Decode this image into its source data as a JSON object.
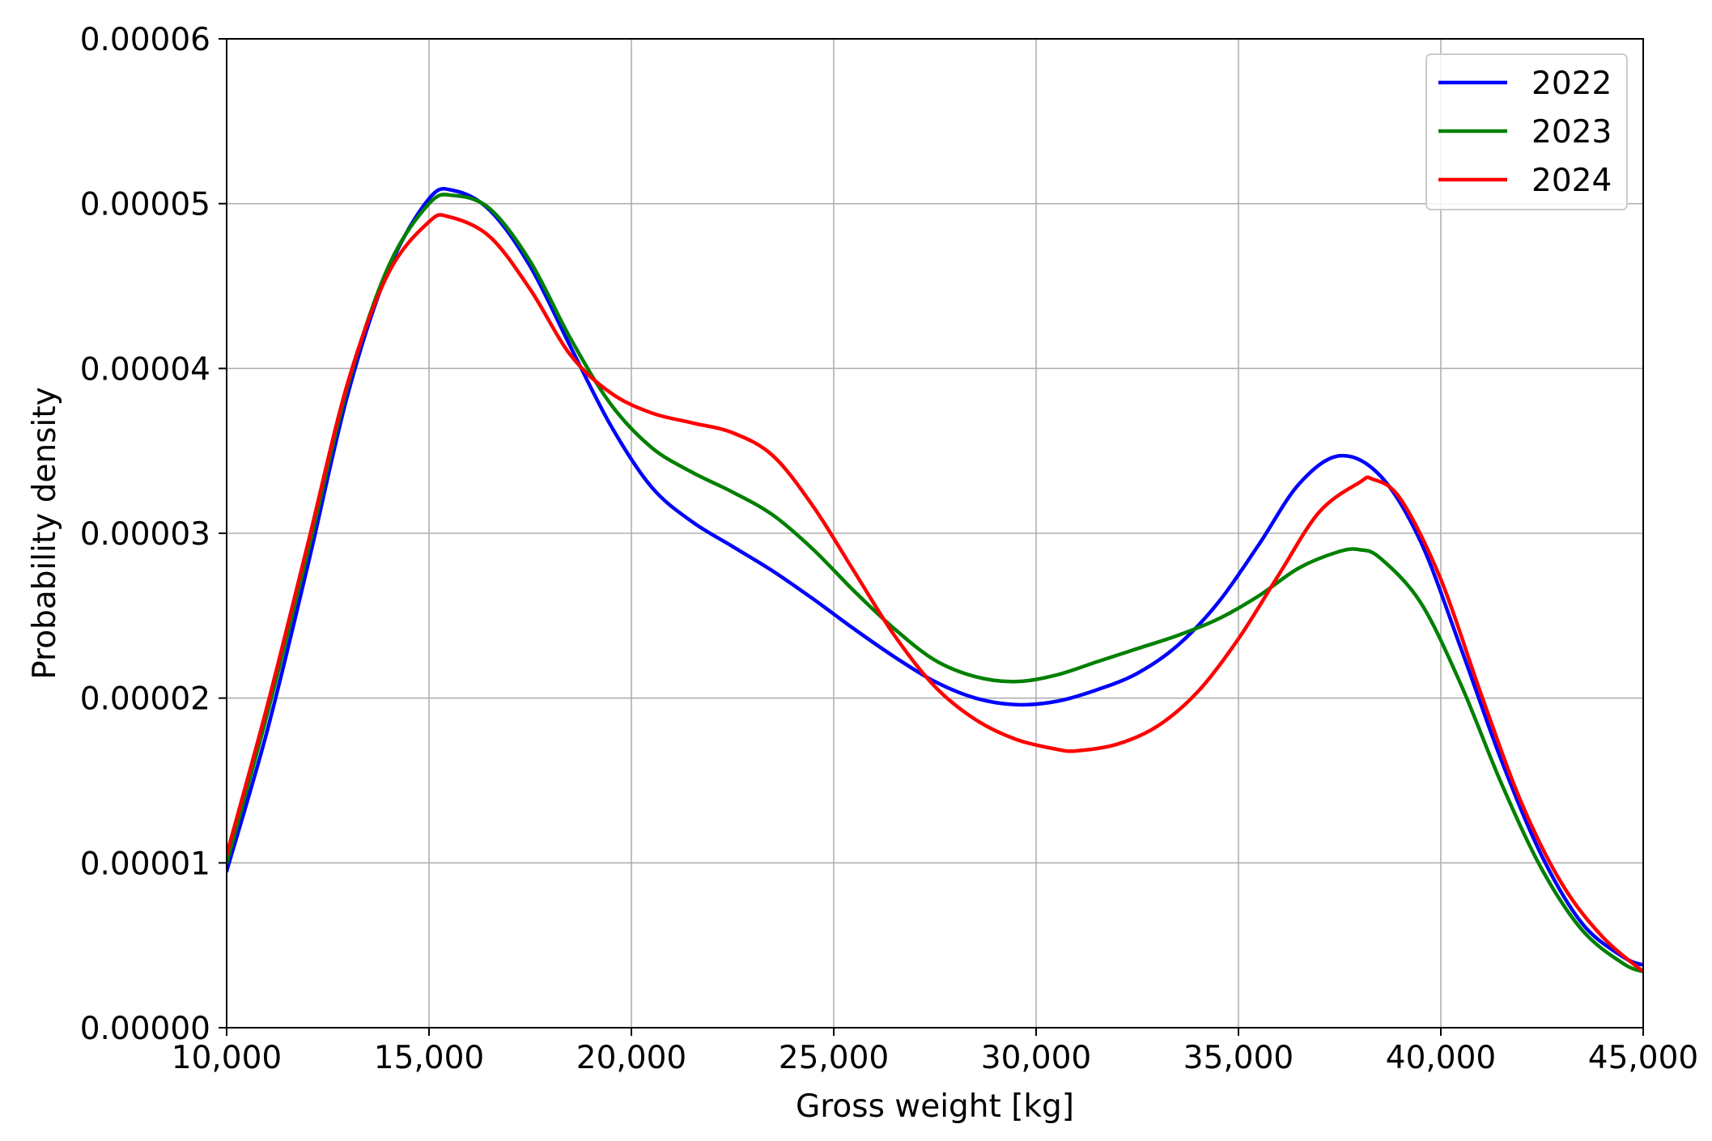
{
  "chart_data": {
    "type": "line",
    "title": "",
    "xlabel": "Gross weight [kg]",
    "ylabel": "Probability density",
    "xlim": [
      10000,
      45000
    ],
    "ylim": [
      0,
      6e-05
    ],
    "xticks": [
      10000,
      15000,
      20000,
      25000,
      30000,
      35000,
      40000,
      45000
    ],
    "xtick_labels": [
      "10,000",
      "15,000",
      "20,000",
      "25,000",
      "30,000",
      "35,000",
      "40,000",
      "45,000"
    ],
    "yticks": [
      0,
      1e-05,
      2e-05,
      3e-05,
      4e-05,
      5e-05,
      6e-05
    ],
    "ytick_labels": [
      "0.00000",
      "0.00001",
      "0.00002",
      "0.00003",
      "0.00004",
      "0.00005",
      "0.00006"
    ],
    "grid": true,
    "legend": "top-right",
    "series": [
      {
        "name": "2022",
        "color": "#0000ff",
        "x": [
          10000,
          11000,
          12000,
          13000,
          14000,
          15000,
          15600,
          16500,
          17500,
          18500,
          19500,
          20500,
          21500,
          22500,
          23500,
          24500,
          25500,
          26500,
          27500,
          28500,
          29500,
          30500,
          31500,
          32500,
          33500,
          34500,
          35500,
          36500,
          37500,
          38500,
          39500,
          40500,
          41500,
          42500,
          43500,
          44500,
          45000
        ],
        "y": [
          9.5e-06,
          1.8e-05,
          2.8e-05,
          3.85e-05,
          4.6e-05,
          5.03e-05,
          5.08e-05,
          4.96e-05,
          4.62e-05,
          4.13e-05,
          3.65e-05,
          3.28e-05,
          3.07e-05,
          2.92e-05,
          2.77e-05,
          2.6e-05,
          2.42e-05,
          2.25e-05,
          2.1e-05,
          2e-05,
          1.96e-05,
          1.98e-05,
          2.05e-05,
          2.15e-05,
          2.32e-05,
          2.58e-05,
          2.93e-05,
          3.3e-05,
          3.47e-05,
          3.35e-05,
          2.95e-05,
          2.3e-05,
          1.62e-05,
          1.04e-05,
          6.3e-06,
          4.3e-06,
          3.8e-06
        ]
      },
      {
        "name": "2023",
        "color": "#008000",
        "x": [
          10000,
          11000,
          12000,
          13000,
          14000,
          15000,
          15600,
          16500,
          17500,
          18500,
          19500,
          20500,
          21500,
          22500,
          23500,
          24500,
          25500,
          26500,
          27500,
          28500,
          29500,
          30500,
          31500,
          32500,
          33500,
          34500,
          35500,
          36500,
          37500,
          38000,
          38500,
          39500,
          40500,
          41500,
          42500,
          43500,
          44500,
          45000
        ],
        "y": [
          1e-05,
          1.9e-05,
          2.88e-05,
          3.9e-05,
          4.62e-05,
          5e-05,
          5.05e-05,
          4.97e-05,
          4.65e-05,
          4.18e-05,
          3.78e-05,
          3.52e-05,
          3.37e-05,
          3.25e-05,
          3.11e-05,
          2.9e-05,
          2.65e-05,
          2.42e-05,
          2.23e-05,
          2.13e-05,
          2.1e-05,
          2.14e-05,
          2.22e-05,
          2.3e-05,
          2.38e-05,
          2.48e-05,
          2.62e-05,
          2.79e-05,
          2.89e-05,
          2.9e-05,
          2.85e-05,
          2.58e-05,
          2.08e-05,
          1.48e-05,
          9.6e-06,
          5.9e-06,
          3.9e-06,
          3.4e-06
        ]
      },
      {
        "name": "2024",
        "color": "#ff0000",
        "x": [
          10000,
          11000,
          12000,
          13000,
          14000,
          15000,
          15500,
          16500,
          17500,
          18500,
          19500,
          20500,
          21500,
          22500,
          23500,
          24500,
          25500,
          26500,
          27500,
          28500,
          29500,
          30500,
          31000,
          32000,
          33000,
          34000,
          35000,
          36000,
          37000,
          38000,
          38300,
          39000,
          40000,
          41000,
          42000,
          43000,
          44000,
          45000
        ],
        "y": [
          1.05e-05,
          1.95e-05,
          2.93e-05,
          3.92e-05,
          4.58e-05,
          4.89e-05,
          4.92e-05,
          4.8e-05,
          4.48e-05,
          4.08e-05,
          3.85e-05,
          3.73e-05,
          3.67e-05,
          3.61e-05,
          3.47e-05,
          3.16e-05,
          2.77e-05,
          2.38e-05,
          2.07e-05,
          1.87e-05,
          1.75e-05,
          1.69e-05,
          1.68e-05,
          1.72e-05,
          1.83e-05,
          2.04e-05,
          2.36e-05,
          2.75e-05,
          3.13e-05,
          3.31e-05,
          3.33e-05,
          3.21e-05,
          2.72e-05,
          2.02e-05,
          1.36e-05,
          8.7e-06,
          5.5e-06,
          3.4e-06
        ]
      }
    ]
  }
}
